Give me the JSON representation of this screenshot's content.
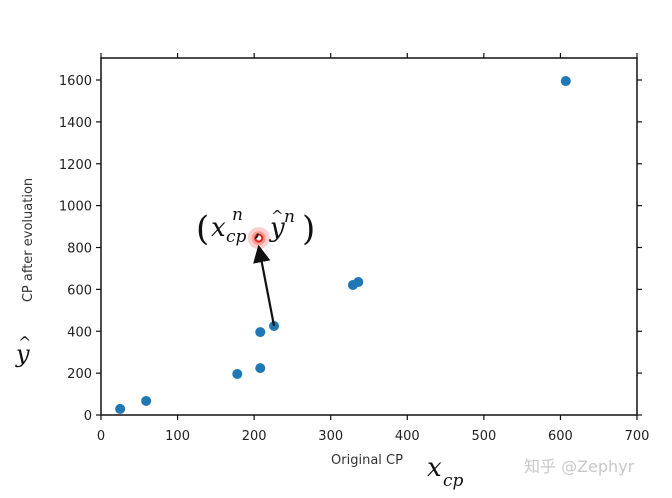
{
  "chart_data": {
    "type": "scatter",
    "title": "",
    "xlabel": "Original CP",
    "ylabel": "CP after evoluation",
    "xlim": [
      0,
      700
    ],
    "ylim": [
      0,
      1700
    ],
    "xticks": [
      0,
      100,
      200,
      300,
      400,
      500,
      600,
      700
    ],
    "yticks": [
      0,
      200,
      400,
      600,
      800,
      1000,
      1200,
      1400,
      1600
    ],
    "grid": false,
    "series": [
      {
        "name": "data",
        "color": "#1f77b4",
        "points": [
          {
            "x": 25,
            "y": 29
          },
          {
            "x": 59,
            "y": 67
          },
          {
            "x": 178,
            "y": 196
          },
          {
            "x": 208,
            "y": 224
          },
          {
            "x": 208,
            "y": 396
          },
          {
            "x": 226,
            "y": 425
          },
          {
            "x": 329,
            "y": 621
          },
          {
            "x": 336,
            "y": 635
          },
          {
            "x": 607,
            "y": 1595
          }
        ]
      },
      {
        "name": "highlighted",
        "color": "#e8231c",
        "points": [
          {
            "x": 206,
            "y": 845
          }
        ]
      }
    ],
    "annotations": [
      {
        "text": "(x_cp^n, ŷ^n)",
        "at": {
          "x": 206,
          "y": 845
        }
      },
      {
        "type": "arrow",
        "from": {
          "x": 226,
          "y": 425
        },
        "to": {
          "x": 206,
          "y": 845
        }
      }
    ]
  },
  "labels": {
    "xlabel": "Original CP",
    "ylabel": "CP after evoluation",
    "x_math": "x",
    "x_math_sub": "cp",
    "y_math": "y",
    "y_math_hat": "^",
    "annot_x": "x",
    "annot_sub": "cp",
    "annot_sup": "n",
    "annot_y": "y",
    "annot_y_sup": "n",
    "annot_open": "(",
    "annot_close": ")",
    "annot_comma": ",",
    "watermark": "知乎 @Zephyr"
  },
  "ticks": {
    "x": [
      "0",
      "100",
      "200",
      "300",
      "400",
      "500",
      "600",
      "700"
    ],
    "y": [
      "0",
      "200",
      "400",
      "600",
      "800",
      "1000",
      "1200",
      "1400",
      "1600"
    ]
  }
}
